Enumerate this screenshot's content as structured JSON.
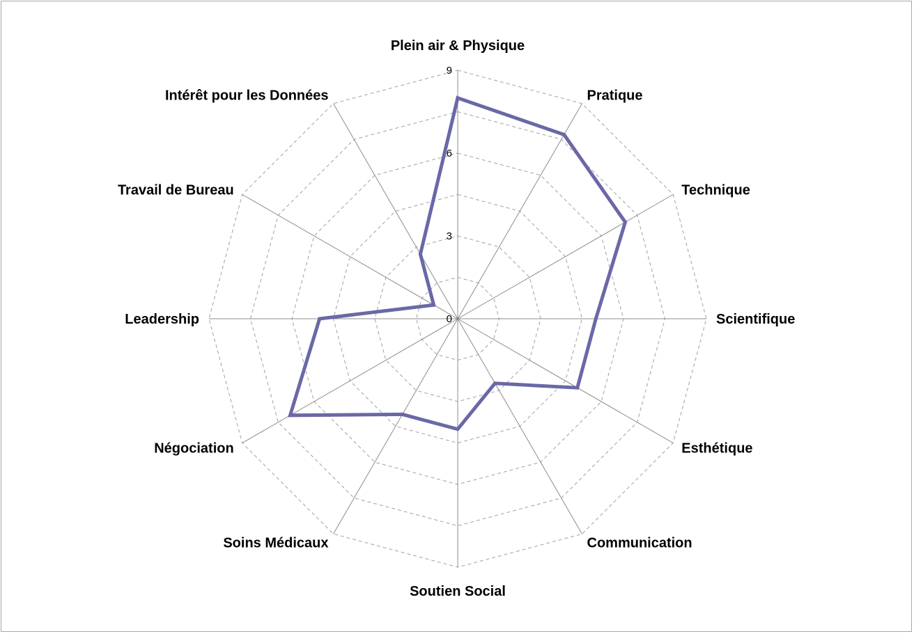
{
  "chart_data": {
    "type": "radar",
    "categories": [
      "Plein air & Physique",
      "Pratique",
      "Technique",
      "Scientifique",
      "Esthétique",
      "Communication",
      "Soutien Social",
      "Soins Médicaux",
      "Négociation",
      "Leadership",
      "Travail de Bureau",
      "Intérêt pour les Données"
    ],
    "series": [
      {
        "values": [
          8,
          7.7,
          7,
          5,
          5,
          2.7,
          4,
          4,
          7,
          5,
          1,
          2.7
        ]
      }
    ],
    "rlim": [
      0,
      9
    ],
    "ticks": [
      "0",
      "3",
      "6",
      "9"
    ],
    "tick_values": [
      0,
      3,
      6,
      9
    ],
    "legend": false,
    "colors": {
      "series": "#6a68a6",
      "grid": "#a0a0a0",
      "spoke": "#8c8c8c",
      "frame": "#a6a6a6"
    }
  }
}
